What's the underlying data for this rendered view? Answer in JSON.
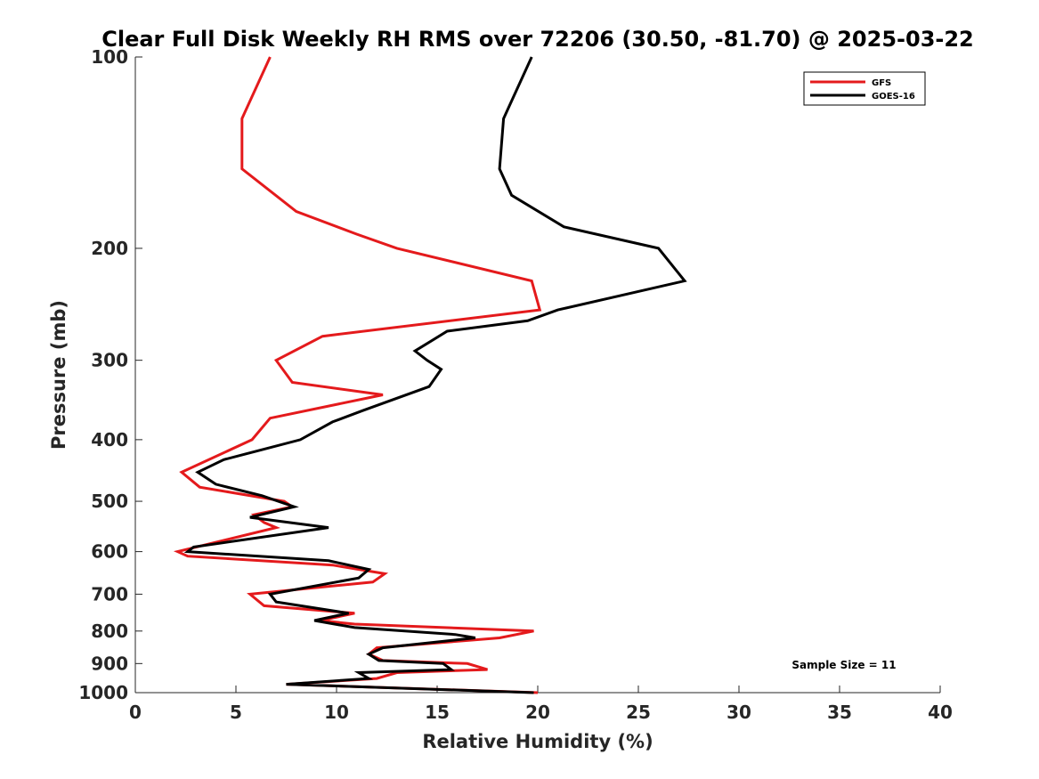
{
  "chart_data": {
    "type": "line",
    "title": "Clear Full Disk Weekly RH RMS over 72206 (30.50, -81.70) @ 2025-03-22",
    "xlabel": "Relative Humidity (%)",
    "ylabel": "Pressure (mb)",
    "xlim": [
      0,
      40
    ],
    "ylim": [
      100,
      1000
    ],
    "y_scale": "log",
    "y_reversed": true,
    "x_ticks": [
      0,
      5,
      10,
      15,
      20,
      25,
      30,
      35,
      40
    ],
    "y_ticks": [
      100,
      200,
      300,
      400,
      500,
      600,
      700,
      800,
      900,
      1000
    ],
    "grid": false,
    "legend_position": "top-right",
    "annotation": "Sample Size = 11",
    "series": [
      {
        "name": "GFS",
        "color": "#e41a1c",
        "points": [
          [
            6.7,
            100
          ],
          [
            5.3,
            125
          ],
          [
            5.3,
            150
          ],
          [
            8.0,
            175
          ],
          [
            11.0,
            190
          ],
          [
            13.0,
            200
          ],
          [
            19.7,
            225
          ],
          [
            20.1,
            250
          ],
          [
            9.3,
            275
          ],
          [
            7.0,
            300
          ],
          [
            7.8,
            325
          ],
          [
            12.3,
            340
          ],
          [
            6.7,
            370
          ],
          [
            5.8,
            400
          ],
          [
            2.3,
            450
          ],
          [
            3.2,
            475
          ],
          [
            7.4,
            500
          ],
          [
            7.8,
            510
          ],
          [
            5.9,
            525
          ],
          [
            6.4,
            540
          ],
          [
            7.0,
            550
          ],
          [
            2.1,
            600
          ],
          [
            2.6,
            610
          ],
          [
            9.8,
            630
          ],
          [
            12.4,
            650
          ],
          [
            11.8,
            670
          ],
          [
            5.7,
            700
          ],
          [
            6.4,
            730
          ],
          [
            10.9,
            750
          ],
          [
            9.2,
            770
          ],
          [
            10.9,
            780
          ],
          [
            19.8,
            800
          ],
          [
            18.1,
            820
          ],
          [
            12.0,
            850
          ],
          [
            11.6,
            870
          ],
          [
            12.3,
            890
          ],
          [
            16.5,
            900
          ],
          [
            17.5,
            920
          ],
          [
            13.0,
            930
          ],
          [
            12.0,
            950
          ],
          [
            7.5,
            970
          ],
          [
            20.0,
            1000
          ]
        ]
      },
      {
        "name": "GOES-16",
        "color": "#000000",
        "points": [
          [
            19.7,
            100
          ],
          [
            18.3,
            125
          ],
          [
            18.1,
            150
          ],
          [
            18.7,
            165
          ],
          [
            21.3,
            185
          ],
          [
            26.0,
            200
          ],
          [
            27.3,
            225
          ],
          [
            21.0,
            250
          ],
          [
            19.5,
            260
          ],
          [
            15.5,
            270
          ],
          [
            13.9,
            290
          ],
          [
            14.5,
            300
          ],
          [
            15.2,
            310
          ],
          [
            14.6,
            330
          ],
          [
            11.3,
            360
          ],
          [
            9.8,
            375
          ],
          [
            8.2,
            400
          ],
          [
            4.4,
            430
          ],
          [
            3.1,
            450
          ],
          [
            4.0,
            470
          ],
          [
            6.3,
            490
          ],
          [
            7.9,
            510
          ],
          [
            5.7,
            530
          ],
          [
            9.6,
            550
          ],
          [
            2.9,
            590
          ],
          [
            2.6,
            600
          ],
          [
            9.6,
            620
          ],
          [
            11.6,
            640
          ],
          [
            11.1,
            660
          ],
          [
            6.7,
            700
          ],
          [
            7.0,
            720
          ],
          [
            10.6,
            750
          ],
          [
            8.9,
            770
          ],
          [
            10.9,
            790
          ],
          [
            15.9,
            810
          ],
          [
            16.9,
            820
          ],
          [
            12.3,
            850
          ],
          [
            11.6,
            870
          ],
          [
            12.1,
            890
          ],
          [
            15.3,
            900
          ],
          [
            15.7,
            920
          ],
          [
            11.1,
            930
          ],
          [
            11.6,
            950
          ],
          [
            7.5,
            970
          ],
          [
            19.8,
            1000
          ]
        ]
      }
    ]
  }
}
